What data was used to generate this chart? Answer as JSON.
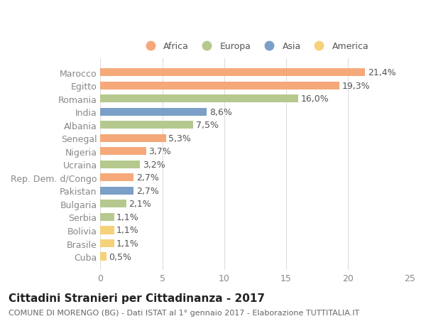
{
  "countries": [
    "Cuba",
    "Brasile",
    "Bolivia",
    "Serbia",
    "Bulgaria",
    "Pakistan",
    "Rep. Dem. d/Congo",
    "Ucraina",
    "Nigeria",
    "Senegal",
    "Albania",
    "India",
    "Romania",
    "Egitto",
    "Marocco"
  ],
  "values": [
    0.5,
    1.1,
    1.1,
    1.1,
    2.1,
    2.7,
    2.7,
    3.2,
    3.7,
    5.3,
    7.5,
    8.6,
    16.0,
    19.3,
    21.4
  ],
  "continents": [
    "America",
    "America",
    "America",
    "Europa",
    "Europa",
    "Asia",
    "Africa",
    "Europa",
    "Africa",
    "Africa",
    "Europa",
    "Asia",
    "Europa",
    "Africa",
    "Africa"
  ],
  "continent_colors": {
    "Africa": "#F5A97A",
    "Europa": "#B5C98E",
    "Asia": "#7B9FC7",
    "America": "#F5D17A"
  },
  "legend_order": [
    "Africa",
    "Europa",
    "Asia",
    "America"
  ],
  "title": "Cittadini Stranieri per Cittadinanza - 2017",
  "subtitle": "COMUNE DI MORENGO (BG) - Dati ISTAT al 1° gennaio 2017 - Elaborazione TUTTITALIA.IT",
  "xlim": [
    0,
    25
  ],
  "xticks": [
    0,
    5,
    10,
    15,
    20,
    25
  ],
  "bg_color": "#ffffff",
  "grid_color": "#dddddd",
  "bar_height": 0.6,
  "label_fontsize": 9,
  "tick_fontsize": 9,
  "title_fontsize": 11,
  "subtitle_fontsize": 8,
  "legend_fontsize": 9
}
